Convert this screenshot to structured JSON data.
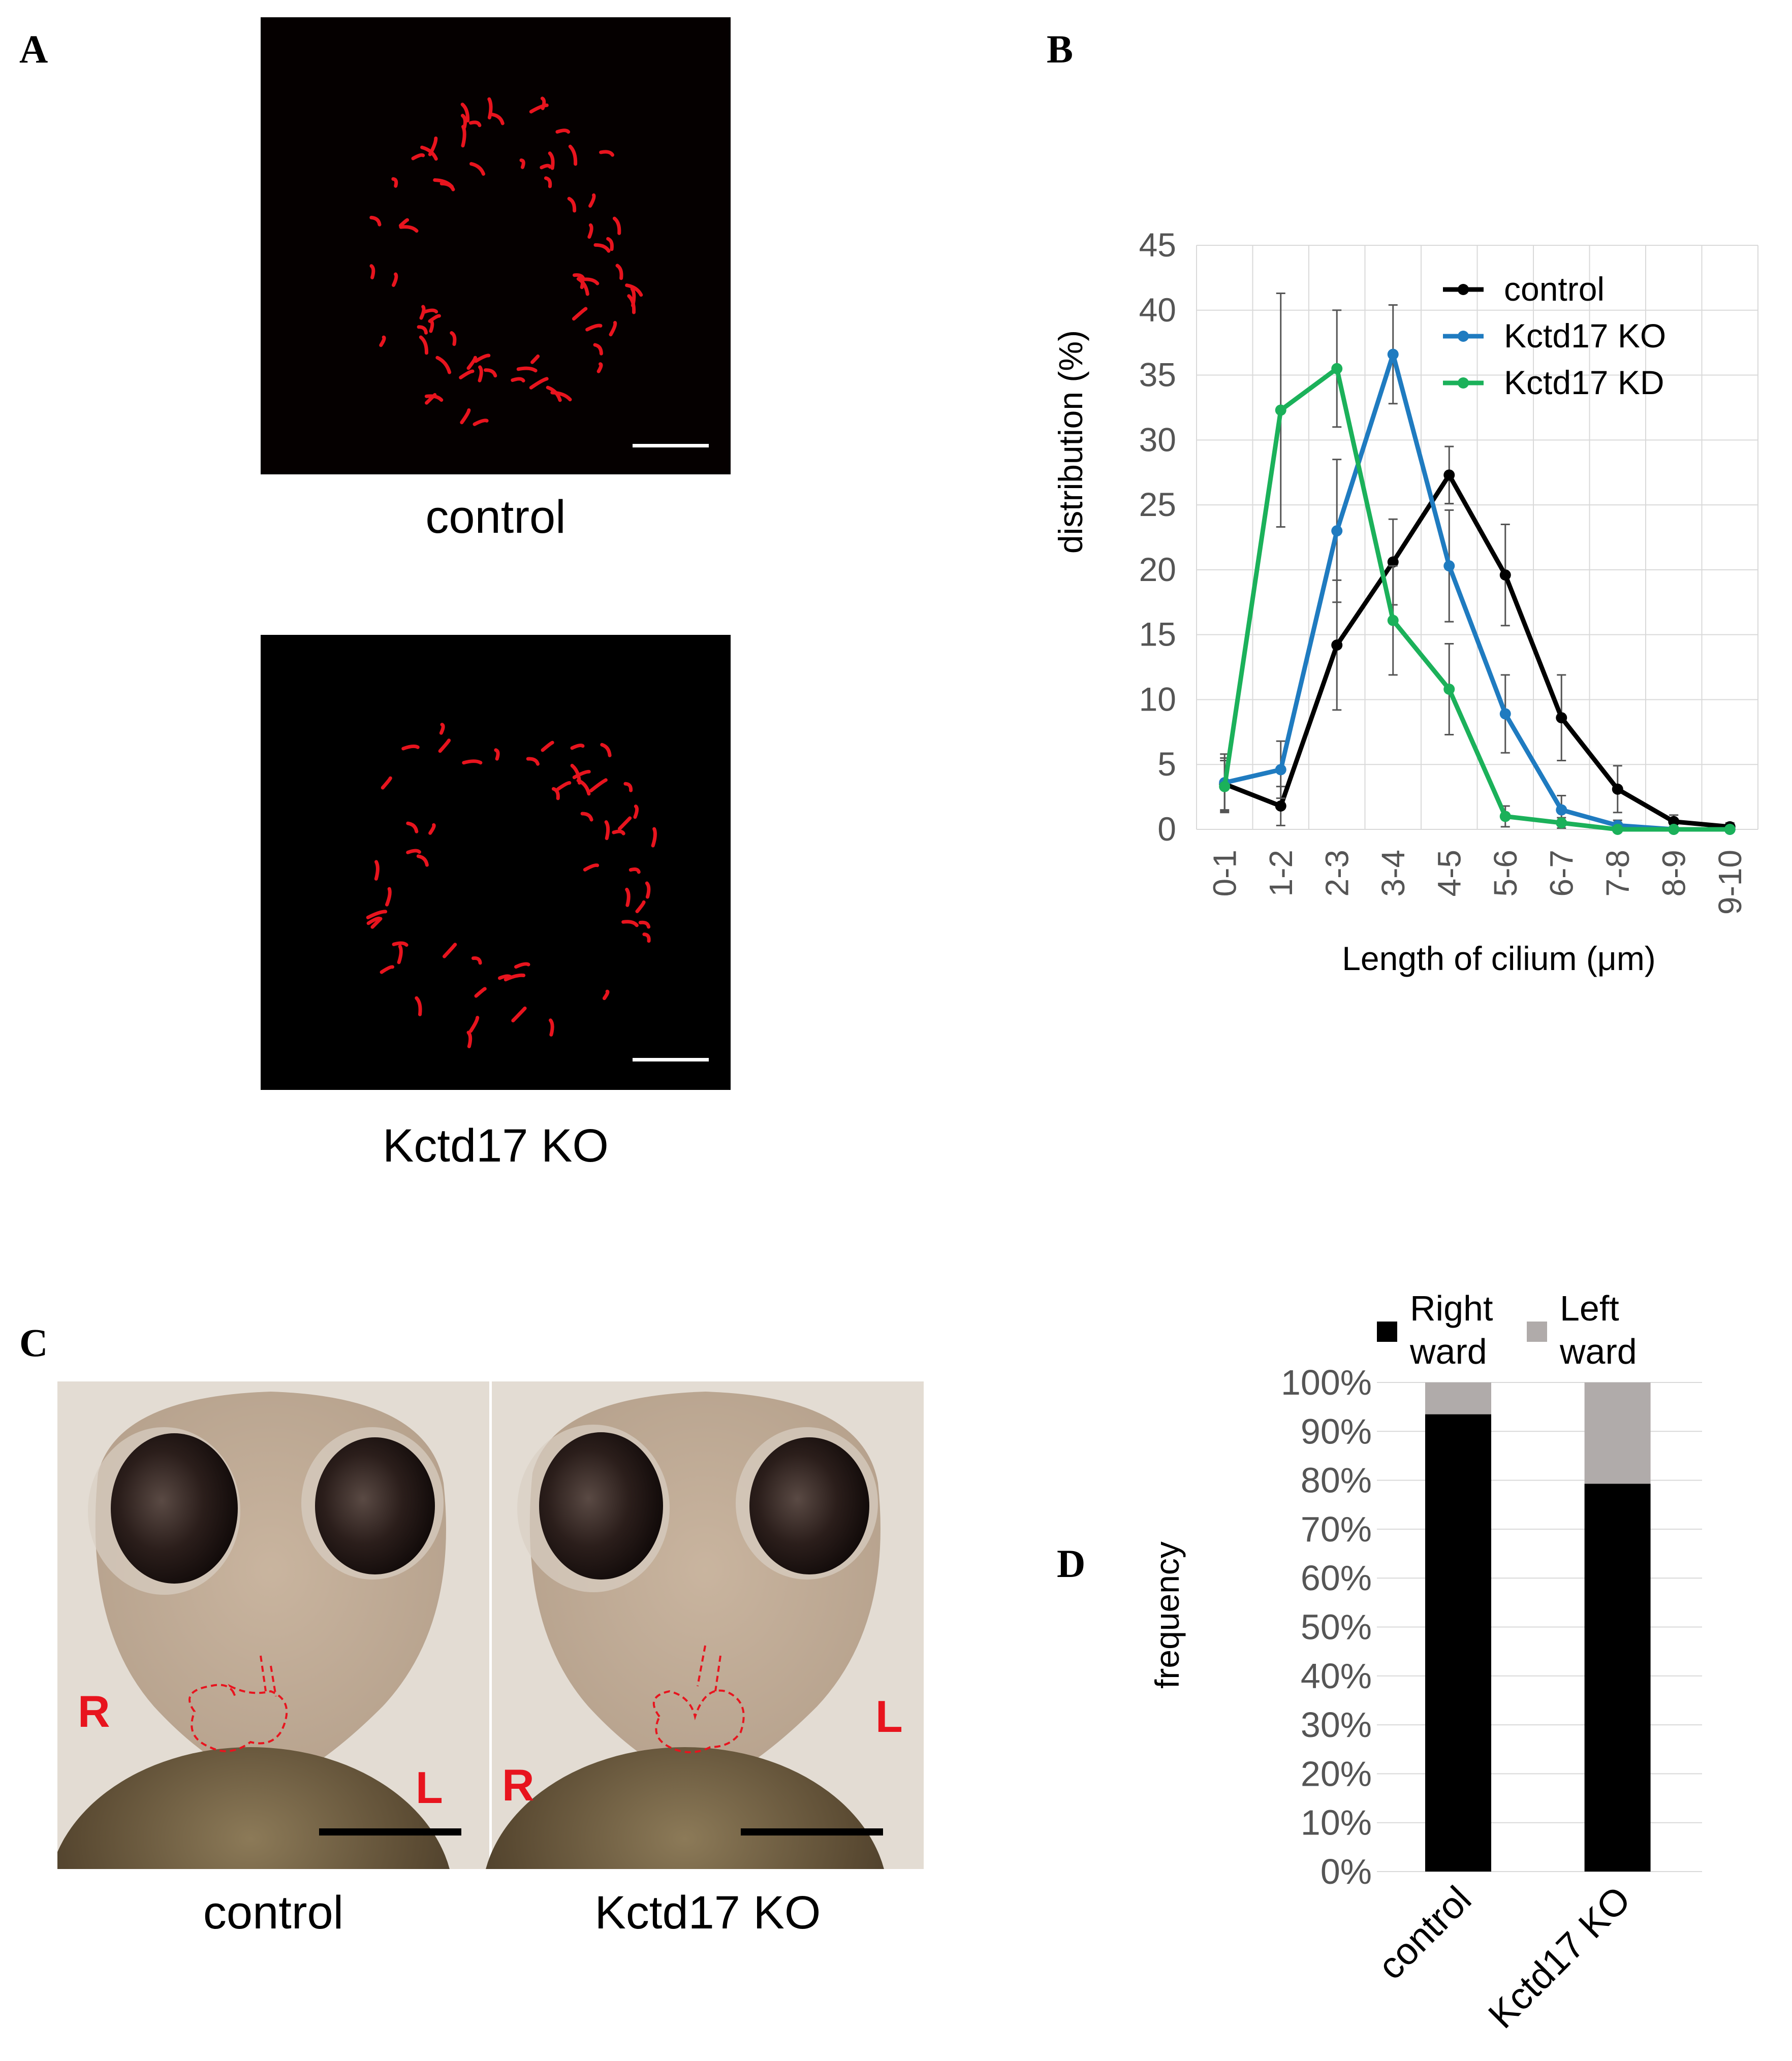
{
  "panels": {
    "a": {
      "label": "A",
      "images": [
        {
          "caption": "control"
        },
        {
          "caption": "Kctd17 KO"
        }
      ]
    },
    "b": {
      "label": "B"
    },
    "c": {
      "label": "C",
      "images": [
        {
          "caption": "control",
          "left_marker": "R",
          "right_marker": "L"
        },
        {
          "caption": "Kctd17 KO",
          "left_marker": "R",
          "right_marker": "L"
        }
      ]
    },
    "d": {
      "label": "D"
    }
  },
  "colors": {
    "control": "#000000",
    "kctd17_ko": "#1f7bc0",
    "kctd17_kd": "#1bb15a",
    "rightward": "#000000",
    "leftward": "#b0abaa",
    "cilia": "#e8141e",
    "annotation_red": "#e8141e"
  },
  "chart_data": [
    {
      "panel": "B",
      "type": "line",
      "categories": [
        "0-1",
        "1-2",
        "2-3",
        "3-4",
        "4-5",
        "5-6",
        "6-7",
        "7-8",
        "8-9",
        "9-10"
      ],
      "xlabel": "Length of cilium (μm)",
      "ylabel": "distribution (%)",
      "ylim": [
        0,
        45
      ],
      "yticks": [
        0,
        5,
        10,
        15,
        20,
        25,
        30,
        35,
        40,
        45
      ],
      "grid": true,
      "legend": "top-right",
      "series": [
        {
          "name": "control",
          "color_key": "control",
          "values": [
            3.5,
            1.8,
            14.2,
            20.6,
            27.3,
            19.6,
            8.6,
            3.1,
            0.6,
            0.2
          ],
          "errors": [
            2.0,
            1.5,
            5.0,
            3.3,
            2.2,
            3.9,
            3.3,
            1.8,
            0.5,
            0.3
          ]
        },
        {
          "name": "Kctd17 KO",
          "color_key": "kctd17_ko",
          "values": [
            3.6,
            4.6,
            23.0,
            36.6,
            20.3,
            8.9,
            1.5,
            0.3,
            0.0,
            0.0
          ],
          "errors": [
            2.2,
            2.2,
            5.5,
            3.8,
            4.3,
            3.0,
            1.1,
            0.4,
            0.1,
            0.1
          ]
        },
        {
          "name": "Kctd17 KD",
          "color_key": "kctd17_kd",
          "values": [
            3.3,
            32.3,
            35.5,
            16.1,
            10.8,
            1.0,
            0.5,
            0.0,
            0.0,
            0.0
          ],
          "errors": [
            2.0,
            9.0,
            4.5,
            4.2,
            3.5,
            0.8,
            0.4,
            0.1,
            0.1,
            0.1
          ]
        }
      ]
    },
    {
      "panel": "D",
      "type": "bar",
      "stacked": true,
      "categories": [
        "control",
        "Kctd17 KO"
      ],
      "ylabel": "frequency",
      "ylim": [
        0,
        100
      ],
      "yticks": [
        "0%",
        "10%",
        "20%",
        "30%",
        "40%",
        "50%",
        "60%",
        "70%",
        "80%",
        "90%",
        "100%"
      ],
      "grid": true,
      "legend": "top",
      "series": [
        {
          "name": "Right ward",
          "legend_lines": [
            "Right",
            "ward"
          ],
          "color_key": "rightward",
          "values": [
            93.5,
            79.3
          ]
        },
        {
          "name": "Left ward",
          "legend_lines": [
            "Left",
            "ward"
          ],
          "color_key": "leftward",
          "values": [
            6.5,
            20.7
          ]
        }
      ]
    }
  ]
}
